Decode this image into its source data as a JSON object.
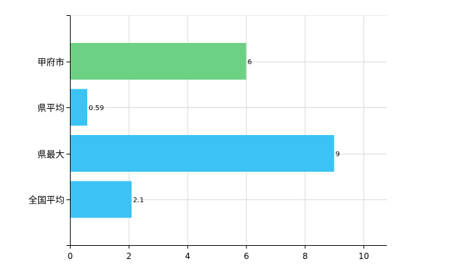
{
  "chart_data": {
    "type": "bar",
    "orientation": "horizontal",
    "categories": [
      "甲府市",
      "県平均",
      "県最大",
      "全国平均"
    ],
    "values": [
      6,
      0.59,
      9,
      2.1
    ],
    "value_labels": [
      "6",
      "0.59",
      "9",
      "2.1"
    ],
    "bar_colors": [
      "#6dd185",
      "#3ac3f4",
      "#3ac3f4",
      "#3ac3f4"
    ],
    "xlim": [
      0,
      10.8
    ],
    "xticks": [
      0,
      2,
      4,
      6,
      8,
      10
    ],
    "xtick_labels": [
      "0",
      "2",
      "4",
      "6",
      "8",
      "10"
    ],
    "grid": true,
    "legend": "none",
    "title": "",
    "xlabel": "",
    "ylabel": ""
  }
}
